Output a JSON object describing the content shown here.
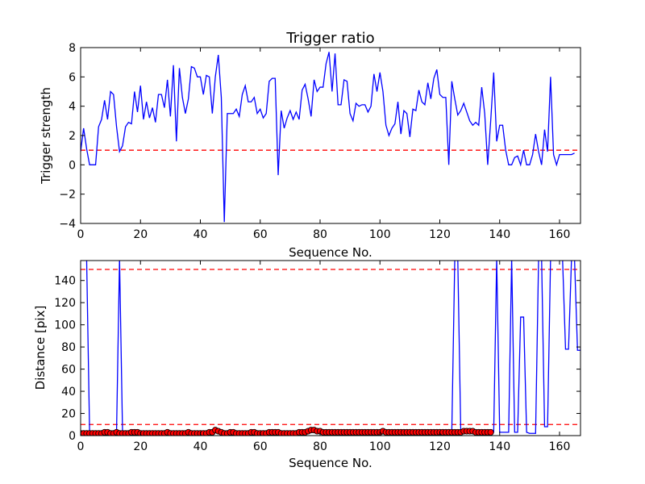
{
  "chart_data": [
    {
      "type": "line",
      "title": "Trigger ratio",
      "xlabel": "Sequence No.",
      "ylabel": "Trigger strength",
      "xlim": [
        0,
        167
      ],
      "ylim": [
        -4,
        8
      ],
      "xticks": [
        "0",
        "20",
        "40",
        "60",
        "80",
        "100",
        "120",
        "140",
        "160"
      ],
      "yticks": [
        "−4",
        "−2",
        "0",
        "2",
        "4",
        "6",
        "8"
      ],
      "series": [
        {
          "color": "#0000ff",
          "values": [
            0.9,
            2.5,
            1.1,
            0,
            0,
            0,
            2.6,
            3.1,
            4.4,
            3.1,
            5,
            4.8,
            2.6,
            0.9,
            1.3,
            2.6,
            2.9,
            2.8,
            5,
            3.6,
            5.4,
            3.1,
            4.3,
            3.2,
            3.9,
            2.9,
            4.8,
            4.8,
            3.9,
            5.8,
            3.3,
            6.8,
            1.6,
            6.6,
            4.6,
            3.5,
            4.5,
            6.7,
            6.6,
            6,
            6,
            4.8,
            6.1,
            6,
            3.5,
            6,
            7.5,
            4.6,
            -3.9,
            3.5,
            3.5,
            3.5,
            3.8,
            3.3,
            4.8,
            5.4,
            4.3,
            4.3,
            4.6,
            3.5,
            3.8,
            3.2,
            3.5,
            5.7,
            5.9,
            5.9,
            -0.7,
            3.7,
            2.5,
            3.2,
            3.7,
            3.1,
            3.6,
            3.1,
            5.1,
            5.5,
            4.5,
            3.3,
            5.8,
            5,
            5.3,
            5.3,
            6.9,
            7.7,
            5,
            7.6,
            4.1,
            4.1,
            5.8,
            5.7,
            3.5,
            3,
            4.2,
            4,
            4.1,
            4.1,
            3.6,
            4,
            6.2,
            5,
            6.3,
            5,
            2.7,
            2,
            2.5,
            2.8,
            4.3,
            2.1,
            3.7,
            3.5,
            1.9,
            3.8,
            3.7,
            5.1,
            4.3,
            4.1,
            5.6,
            4.5,
            5.9,
            6.5,
            4.8,
            4.6,
            4.6,
            0,
            5.7,
            4.5,
            3.4,
            3.7,
            4.2,
            3.6,
            3,
            2.7,
            2.9,
            2.7,
            5.3,
            3.5,
            0,
            3,
            6.3,
            1.6,
            2.7,
            2.7,
            1,
            0,
            0,
            0.5,
            0.6,
            0,
            1,
            0,
            0,
            0.7,
            2.1,
            0.9,
            0,
            2.4,
            0.9,
            6,
            0.7,
            0,
            0.7,
            0.7,
            0.7,
            0.7,
            0.7,
            0.8
          ]
        }
      ],
      "hlines": [
        1
      ],
      "refcolor": "#ff0000"
    },
    {
      "type": "line",
      "title": "",
      "xlabel": "Sequence No.",
      "ylabel": "Distance [pix]",
      "xlim": [
        0,
        167
      ],
      "ylim": [
        0,
        158
      ],
      "xticks": [
        "0",
        "20",
        "40",
        "60",
        "80",
        "100",
        "120",
        "140",
        "160"
      ],
      "yticks": [
        "0",
        "20",
        "40",
        "60",
        "80",
        "100",
        "120",
        "140"
      ],
      "series": [
        {
          "color": "#0000ff",
          "values": [
            160,
            160,
            160,
            2,
            2,
            2,
            2,
            2,
            2,
            2,
            2,
            2,
            3,
            160,
            3,
            3,
            3,
            3,
            3,
            3,
            3,
            3,
            3,
            3,
            3,
            3,
            3,
            3,
            3,
            3,
            3,
            3,
            3,
            3,
            3,
            3,
            3,
            3,
            3,
            3,
            3,
            3,
            3,
            3,
            3,
            3,
            3,
            3,
            3,
            3,
            3,
            3,
            3,
            3,
            3,
            3,
            3,
            3,
            3,
            3,
            3,
            3,
            3,
            3,
            3,
            3,
            3,
            3,
            3,
            3,
            3,
            3,
            3,
            3,
            3,
            3,
            3,
            3,
            3,
            3,
            3,
            3,
            3,
            3,
            3,
            3,
            3,
            3,
            3,
            3,
            3,
            3,
            3,
            3,
            3,
            3,
            3,
            3,
            3,
            3,
            3,
            3,
            3,
            3,
            3,
            3,
            3,
            3,
            3,
            3,
            3,
            3,
            3,
            3,
            3,
            3,
            3,
            3,
            3,
            3,
            3,
            3,
            3,
            3,
            3,
            160,
            160,
            3,
            3,
            3,
            3,
            3,
            3,
            3,
            3,
            3,
            3,
            3,
            3,
            160,
            3,
            3,
            3,
            3,
            160,
            3,
            3,
            107,
            107,
            3,
            2,
            2,
            2,
            160,
            160,
            8,
            8,
            160,
            160,
            160,
            160,
            160,
            78,
            78,
            160,
            160,
            77,
            77,
            160
          ]
        },
        {
          "color": "#ff0000",
          "marker": "circle",
          "values": [
            2,
            2,
            2,
            2,
            2,
            2,
            2,
            2,
            3,
            3,
            2,
            2,
            3,
            2,
            2,
            2,
            2,
            3,
            3,
            3,
            2,
            2,
            2,
            2,
            2,
            2,
            2,
            2,
            2,
            3,
            2,
            2,
            2,
            2,
            2,
            2,
            3,
            2,
            2,
            2,
            2,
            2,
            2,
            3,
            3,
            5,
            4,
            3,
            2,
            2,
            3,
            3,
            2,
            2,
            2,
            2,
            2,
            3,
            3,
            2,
            2,
            2,
            2,
            3,
            3,
            3,
            3,
            2,
            2,
            2,
            2,
            2,
            2,
            3,
            3,
            3,
            4,
            5,
            5,
            4,
            4,
            3,
            3,
            3,
            3,
            3,
            3,
            3,
            3,
            3,
            3,
            3,
            3,
            3,
            3,
            3,
            3,
            3,
            3,
            3,
            3,
            4,
            3,
            3,
            3,
            3,
            3,
            3,
            3,
            3,
            3,
            3,
            3,
            3,
            3,
            3,
            3,
            3,
            3,
            3,
            3,
            3,
            3,
            3,
            3,
            3,
            3,
            3,
            4,
            4,
            4,
            4,
            3,
            3,
            3,
            3,
            3,
            3
          ]
        }
      ],
      "hlines": [
        150,
        10
      ],
      "refcolor": "#ff0000"
    }
  ]
}
